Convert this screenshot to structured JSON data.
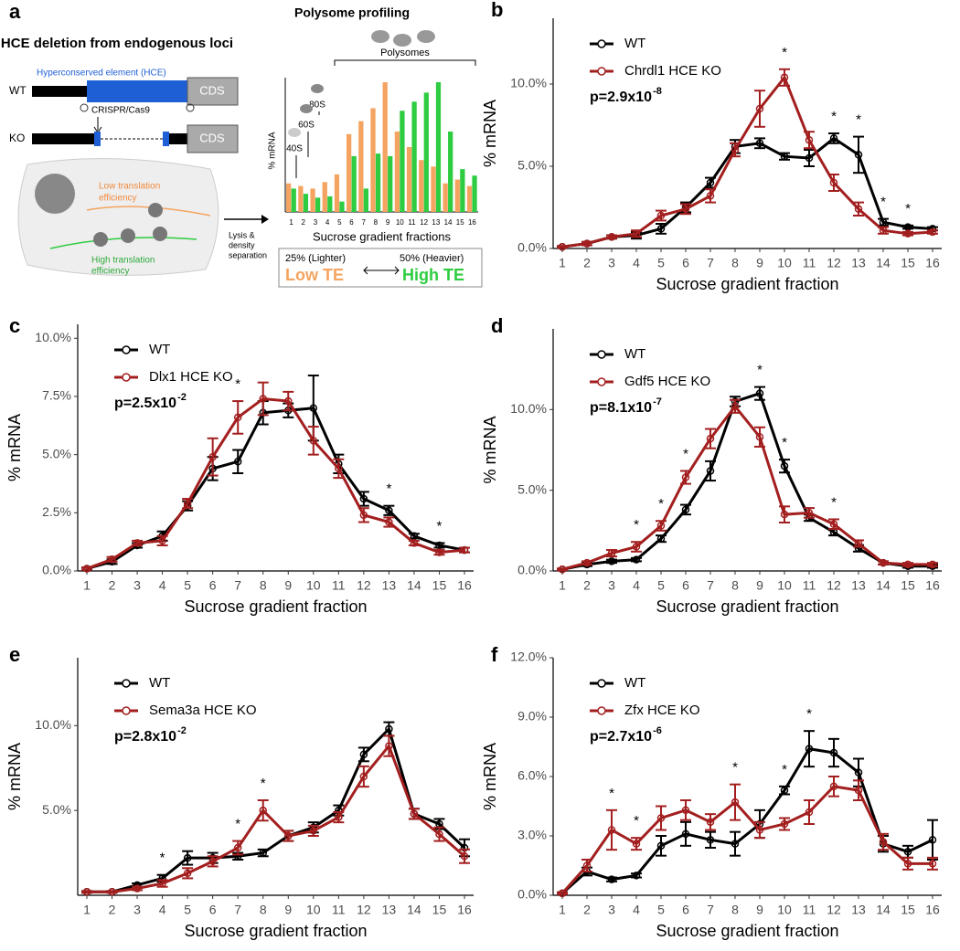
{
  "diagram": {
    "panel": "a",
    "title": "HCE deletion from endogenous loci",
    "hce": "Hyperconserved element (HCE)",
    "wt": "WT",
    "ko": "KO",
    "cds": [
      "CDS",
      "CDS"
    ],
    "crispr": "CRISPR/Cas9",
    "low_te_text": [
      "Low translation",
      "efficiency"
    ],
    "high_te_text": [
      "High translation",
      "efficiency"
    ],
    "lysis": [
      "Lysis &",
      "density",
      "separation"
    ],
    "lighter": "25% (Lighter)",
    "heavier": "50% (Heavier)",
    "low_te": "Low TE",
    "high_te": "High TE"
  },
  "chart_data": [
    {
      "type": "bar",
      "title": "Polysome profiling",
      "ylabel": "% mRNA",
      "xlabel": "Sucrose gradient fractions",
      "annotations": [
        "Polysomes",
        "80S",
        "60S",
        "40S"
      ],
      "categories": [
        "1",
        "2",
        "3",
        "4",
        "5",
        "6",
        "7",
        "8",
        "9",
        "10",
        "11",
        "12",
        "13",
        "14",
        "15",
        "16"
      ],
      "series": [
        {
          "color": "#f4a460",
          "values": [
            22,
            20,
            18,
            23,
            29,
            60,
            70,
            80,
            100,
            62,
            50,
            40,
            35,
            22,
            25,
            20
          ]
        },
        {
          "color": "#2ecc40",
          "values": [
            18,
            14,
            11,
            12,
            8,
            43,
            18,
            45,
            43,
            78,
            85,
            92,
            100,
            62,
            33,
            28
          ]
        }
      ]
    },
    {
      "type": "line",
      "panel": "b",
      "ylabel": "% mRNA",
      "xlabel": "Sucrose gradient fraction",
      "p_value": "p=2.9x10",
      "p_exponent": "-8",
      "star": "*",
      "significant": [
        10,
        12,
        13,
        14,
        15
      ],
      "categories": [
        "1",
        "2",
        "3",
        "4",
        "5",
        "6",
        "7",
        "8",
        "9",
        "10",
        "11",
        "12",
        "13",
        "14",
        "15",
        "16"
      ],
      "ylim": [
        0,
        14
      ],
      "yticks": [
        {
          "value": 0,
          "label": "0.0%"
        },
        {
          "value": 5,
          "label": "5.0%"
        },
        {
          "value": 10,
          "label": "10.0%"
        }
      ],
      "series": [
        {
          "name": "WT",
          "color": "#000000",
          "values": [
            0.1,
            0.3,
            0.7,
            0.8,
            1.2,
            2.5,
            4.0,
            6.2,
            6.4,
            5.6,
            5.5,
            6.7,
            5.7,
            1.6,
            1.3,
            1.2
          ],
          "errors": [
            0.05,
            0.1,
            0.1,
            0.2,
            0.3,
            0.3,
            0.3,
            0.4,
            0.3,
            0.2,
            0.5,
            0.3,
            1.1,
            0.2,
            0.1,
            0.1
          ]
        },
        {
          "name": "Chrdl1 HCE KO",
          "color": "#a31f1f",
          "values": [
            0.1,
            0.3,
            0.7,
            0.9,
            2.0,
            2.4,
            3.2,
            6.0,
            8.5,
            10.4,
            6.6,
            4.0,
            2.4,
            1.1,
            0.9,
            1.0
          ],
          "errors": [
            0.05,
            0.1,
            0.1,
            0.2,
            0.3,
            0.3,
            0.4,
            0.4,
            1.1,
            0.5,
            0.5,
            0.5,
            0.4,
            0.2,
            0.1,
            0.1
          ]
        }
      ]
    },
    {
      "type": "line",
      "panel": "c",
      "ylabel": "% mRNA",
      "xlabel": "Sucrose gradient fraction",
      "p_value": "p=2.5x10",
      "p_exponent": "-2",
      "star": "*",
      "significant": [
        7,
        13,
        15
      ],
      "categories": [
        "1",
        "2",
        "3",
        "4",
        "5",
        "6",
        "7",
        "8",
        "9",
        "10",
        "11",
        "12",
        "13",
        "14",
        "15",
        "16"
      ],
      "ylim": [
        0,
        10.6
      ],
      "yticks": [
        {
          "value": 0,
          "label": "0.0%"
        },
        {
          "value": 2.5,
          "label": "2.5%"
        },
        {
          "value": 5,
          "label": "5.0%"
        },
        {
          "value": 7.5,
          "label": "7.5%"
        },
        {
          "value": 10,
          "label": "10.0%"
        }
      ],
      "series": [
        {
          "name": "WT",
          "color": "#000000",
          "values": [
            0.1,
            0.4,
            1.1,
            1.5,
            2.8,
            4.4,
            4.7,
            6.8,
            6.9,
            7.0,
            4.6,
            3.1,
            2.6,
            1.5,
            1.1,
            0.9
          ],
          "errors": [
            0.05,
            0.1,
            0.1,
            0.2,
            0.2,
            0.5,
            0.5,
            0.5,
            0.3,
            1.4,
            0.4,
            0.3,
            0.2,
            0.1,
            0.1,
            0.1
          ]
        },
        {
          "name": "Dlx1 HCE KO",
          "color": "#a31f1f",
          "values": [
            0.1,
            0.5,
            1.2,
            1.3,
            2.9,
            4.9,
            6.6,
            7.4,
            7.3,
            5.6,
            4.4,
            2.4,
            2.1,
            1.2,
            0.8,
            0.9
          ],
          "errors": [
            0.05,
            0.1,
            0.1,
            0.2,
            0.2,
            0.8,
            0.7,
            0.7,
            0.4,
            0.6,
            0.4,
            0.3,
            0.2,
            0.1,
            0.1,
            0.1
          ]
        }
      ]
    },
    {
      "type": "line",
      "panel": "d",
      "ylabel": "% mRNA",
      "xlabel": "Sucrose gradient fraction",
      "p_value": "p=8.1x10",
      "p_exponent": "-7",
      "star": "*",
      "significant": [
        4,
        5,
        6,
        9,
        10,
        12
      ],
      "categories": [
        "1",
        "2",
        "3",
        "4",
        "5",
        "6",
        "7",
        "8",
        "9",
        "10",
        "11",
        "12",
        "13",
        "14",
        "15",
        "16"
      ],
      "ylim": [
        0,
        15
      ],
      "yticks": [
        {
          "value": 0,
          "label": "0.0%"
        },
        {
          "value": 5,
          "label": "5.0%"
        },
        {
          "value": 10,
          "label": "10.0%"
        }
      ],
      "series": [
        {
          "name": "WT",
          "color": "#000000",
          "values": [
            0.1,
            0.4,
            0.6,
            0.7,
            2.0,
            3.8,
            6.2,
            10.5,
            11.0,
            6.5,
            3.3,
            2.4,
            1.4,
            0.5,
            0.3,
            0.3
          ],
          "errors": [
            0.05,
            0.1,
            0.1,
            0.1,
            0.2,
            0.3,
            0.6,
            0.3,
            0.4,
            0.4,
            0.2,
            0.2,
            0.2,
            0.1,
            0.1,
            0.1
          ]
        },
        {
          "name": "Gdf5 HCE KO",
          "color": "#a31f1f",
          "values": [
            0.1,
            0.5,
            1.1,
            1.5,
            2.8,
            5.8,
            8.2,
            10.2,
            8.3,
            3.5,
            3.6,
            2.9,
            1.7,
            0.5,
            0.4,
            0.4
          ],
          "errors": [
            0.05,
            0.1,
            0.2,
            0.3,
            0.3,
            0.4,
            0.6,
            0.4,
            0.6,
            0.5,
            0.3,
            0.3,
            0.2,
            0.1,
            0.1,
            0.1
          ]
        }
      ]
    },
    {
      "type": "line",
      "panel": "e",
      "ylabel": "% mRNA",
      "xlabel": "Sucrose gradient fraction",
      "p_value": "p=2.8x10",
      "p_exponent": "-2",
      "star": "*",
      "significant": [
        4,
        7,
        8
      ],
      "categories": [
        "1",
        "2",
        "3",
        "4",
        "5",
        "6",
        "7",
        "8",
        "9",
        "10",
        "11",
        "12",
        "13",
        "14",
        "15",
        "16"
      ],
      "ylim": [
        0,
        14
      ],
      "yticks": [
        {
          "value": 5,
          "label": "5.0%"
        },
        {
          "value": 10,
          "label": "10.0%"
        }
      ],
      "series": [
        {
          "name": "WT",
          "color": "#000000",
          "values": [
            0.2,
            0.2,
            0.6,
            1.0,
            2.2,
            2.2,
            2.3,
            2.5,
            3.5,
            4.0,
            5.0,
            8.3,
            9.8,
            4.8,
            4.2,
            2.8
          ],
          "errors": [
            0.05,
            0.05,
            0.1,
            0.2,
            0.4,
            0.3,
            0.2,
            0.2,
            0.3,
            0.3,
            0.3,
            0.4,
            0.4,
            0.3,
            0.3,
            0.5
          ]
        },
        {
          "name": "Sema3a HCE KO",
          "color": "#a31f1f",
          "values": [
            0.2,
            0.2,
            0.4,
            0.7,
            1.3,
            2.0,
            2.8,
            5.0,
            3.5,
            3.8,
            4.6,
            7.0,
            8.8,
            4.8,
            3.6,
            2.3
          ],
          "errors": [
            0.05,
            0.05,
            0.1,
            0.2,
            0.3,
            0.3,
            0.4,
            0.6,
            0.3,
            0.3,
            0.3,
            0.6,
            0.6,
            0.3,
            0.4,
            0.4
          ]
        }
      ]
    },
    {
      "type": "line",
      "panel": "f",
      "ylabel": "% mRNA",
      "xlabel": "Sucrose gradient fraction",
      "p_value": "p=2.7x10",
      "p_exponent": "-6",
      "star": "*",
      "significant": [
        3,
        4,
        8,
        10,
        11
      ],
      "categories": [
        "1",
        "2",
        "3",
        "4",
        "5",
        "6",
        "7",
        "8",
        "9",
        "10",
        "11",
        "12",
        "13",
        "14",
        "15",
        "16"
      ],
      "ylim": [
        0,
        12
      ],
      "yticks": [
        {
          "value": 0,
          "label": "0.0%"
        },
        {
          "value": 3,
          "label": "3.0%"
        },
        {
          "value": 6,
          "label": "6.0%"
        },
        {
          "value": 9,
          "label": "9.0%"
        },
        {
          "value": 12,
          "label": "12.0%"
        }
      ],
      "series": [
        {
          "name": "WT",
          "color": "#000000",
          "values": [
            0.1,
            1.2,
            0.8,
            1.0,
            2.5,
            3.1,
            2.8,
            2.6,
            3.6,
            5.3,
            7.4,
            7.2,
            6.2,
            2.6,
            2.2,
            2.8
          ],
          "errors": [
            0.05,
            0.2,
            0.1,
            0.1,
            0.5,
            0.6,
            0.4,
            0.6,
            0.7,
            0.2,
            0.9,
            0.7,
            0.7,
            0.4,
            0.3,
            1.0
          ]
        },
        {
          "name": "Zfx HCE KO",
          "color": "#a31f1f",
          "values": [
            0.1,
            1.5,
            3.3,
            2.6,
            3.9,
            4.3,
            3.7,
            4.7,
            3.3,
            3.6,
            4.2,
            5.5,
            5.3,
            2.7,
            1.6,
            1.6
          ],
          "errors": [
            0.05,
            0.3,
            1.0,
            0.3,
            0.6,
            0.5,
            0.4,
            0.9,
            0.4,
            0.3,
            0.6,
            0.5,
            0.5,
            0.4,
            0.3,
            0.3
          ]
        }
      ]
    }
  ]
}
